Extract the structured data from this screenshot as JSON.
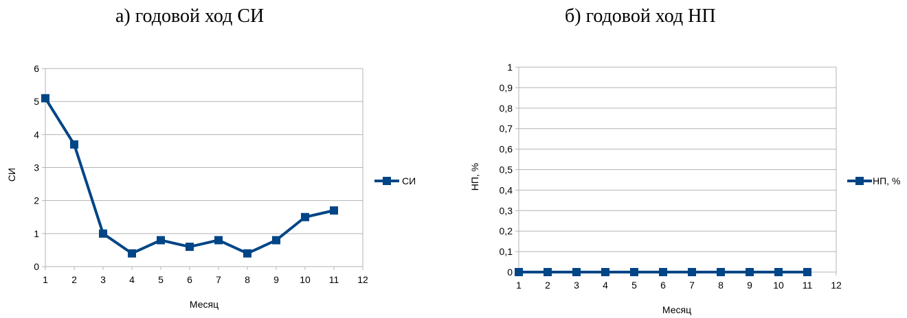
{
  "titles": {
    "left": "а) годовой ход СИ",
    "right": "б) годовой ход НП"
  },
  "colors": {
    "series": "#004586",
    "grid": "#b3b3b3",
    "axis": "#b3b3b3"
  },
  "chart_data": [
    {
      "type": "line",
      "xlabel": "Месяц",
      "ylabel": "СИ",
      "x": [
        1,
        2,
        3,
        4,
        5,
        6,
        7,
        8,
        9,
        10,
        11
      ],
      "xlim": [
        1,
        12
      ],
      "xticks": [
        "1",
        "2",
        "3",
        "4",
        "5",
        "6",
        "7",
        "8",
        "9",
        "10",
        "11",
        "12"
      ],
      "ylim": [
        0,
        6
      ],
      "yticks": [
        "0",
        "1",
        "2",
        "3",
        "4",
        "5",
        "6"
      ],
      "series": [
        {
          "name": "СИ",
          "values": [
            5.1,
            3.7,
            1.0,
            0.4,
            0.8,
            0.6,
            0.8,
            0.4,
            0.8,
            1.5,
            1.7
          ]
        }
      ],
      "legend": "right",
      "grid": true
    },
    {
      "type": "line",
      "xlabel": "Месяц",
      "ylabel": "НП, %",
      "x": [
        1,
        2,
        3,
        4,
        5,
        6,
        7,
        8,
        9,
        10,
        11
      ],
      "xlim": [
        1,
        12
      ],
      "xticks": [
        "1",
        "2",
        "3",
        "4",
        "5",
        "6",
        "7",
        "8",
        "9",
        "10",
        "11",
        "12"
      ],
      "ylim": [
        0,
        1
      ],
      "yticks": [
        "0",
        "0,1",
        "0,2",
        "0,3",
        "0,4",
        "0,5",
        "0,6",
        "0,7",
        "0,8",
        "0,9",
        "1"
      ],
      "series": [
        {
          "name": "НП, %",
          "values": [
            0,
            0,
            0,
            0,
            0,
            0,
            0,
            0,
            0,
            0,
            0
          ]
        }
      ],
      "legend": "right",
      "grid": true
    }
  ]
}
